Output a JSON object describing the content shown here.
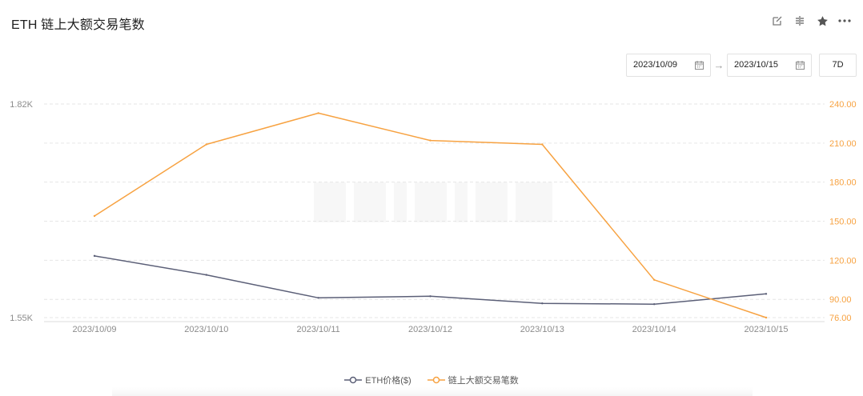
{
  "header": {
    "title": "ETH 链上大额交易笔数",
    "icons": [
      "edit-icon",
      "compare-icon",
      "star-icon",
      "more-icon"
    ]
  },
  "range": {
    "start": "2023/10/09",
    "end": "2023/10/15",
    "period": "7D"
  },
  "legend": {
    "price": "ETH价格($)",
    "count": "链上大额交易笔数"
  },
  "colors": {
    "price": "#5b5f77",
    "count": "#f7a241",
    "grid": "#e6e6e6",
    "axis_left": "#8c8c8c",
    "axis_right": "#f7a241"
  },
  "chart_data": {
    "type": "line",
    "x": [
      "2023/10/09",
      "2023/10/10",
      "2023/10/11",
      "2023/10/12",
      "2023/10/13",
      "2023/10/14",
      "2023/10/15"
    ],
    "series": [
      {
        "name": "ETH价格($)",
        "axis": "left",
        "values": [
          1.628,
          1.604,
          1.575,
          1.577,
          1.568,
          1.567,
          1.58
        ]
      },
      {
        "name": "链上大额交易笔数",
        "axis": "right",
        "values": [
          154,
          209,
          233,
          212,
          209,
          105,
          76
        ]
      }
    ],
    "y_left": {
      "ticks": [
        "1.82K",
        "1.55K"
      ],
      "range": [
        1.55,
        1.82
      ]
    },
    "y_right": {
      "ticks": [
        "240.00",
        "210.00",
        "180.00",
        "150.00",
        "120.00",
        "90.00",
        "76.00"
      ],
      "range": [
        76,
        240
      ]
    },
    "grid": true,
    "legend_position": "bottom"
  }
}
